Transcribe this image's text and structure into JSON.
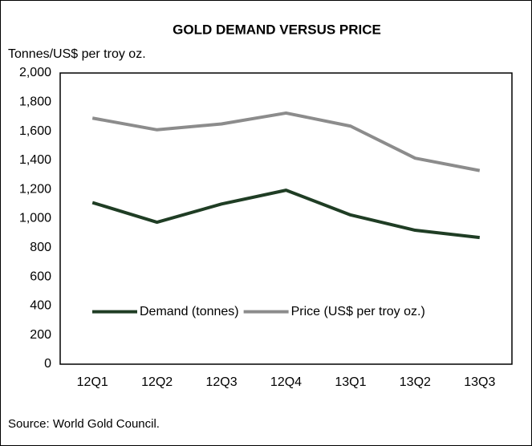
{
  "chart_data": {
    "type": "line",
    "title": "GOLD DEMAND VERSUS PRICE",
    "y_label": "Tonnes/US$ per troy oz.",
    "source": "Source: World Gold Council.",
    "categories": [
      "12Q1",
      "12Q2",
      "12Q3",
      "12Q4",
      "13Q1",
      "13Q2",
      "13Q3"
    ],
    "series": [
      {
        "name": "Demand (tonnes)",
        "color": "#1f3d24",
        "values": [
          1110,
          975,
          1100,
          1195,
          1025,
          920,
          870
        ]
      },
      {
        "name": "Price (US$ per troy oz.)",
        "color": "#8c8c8c",
        "values": [
          1690,
          1610,
          1650,
          1725,
          1635,
          1415,
          1330
        ]
      }
    ],
    "ylim": [
      0,
      2000
    ],
    "yticks": [
      0,
      200,
      400,
      600,
      800,
      {
        "value": 1000,
        "label": "1,000"
      },
      {
        "value": 1200,
        "label": "1,200"
      },
      {
        "value": 1400,
        "label": "1,400"
      },
      {
        "value": 1600,
        "label": "1,600"
      },
      {
        "value": 1800,
        "label": "1,800"
      },
      {
        "value": 2000,
        "label": "2,000"
      }
    ],
    "grid": false,
    "legend": "lower left"
  }
}
